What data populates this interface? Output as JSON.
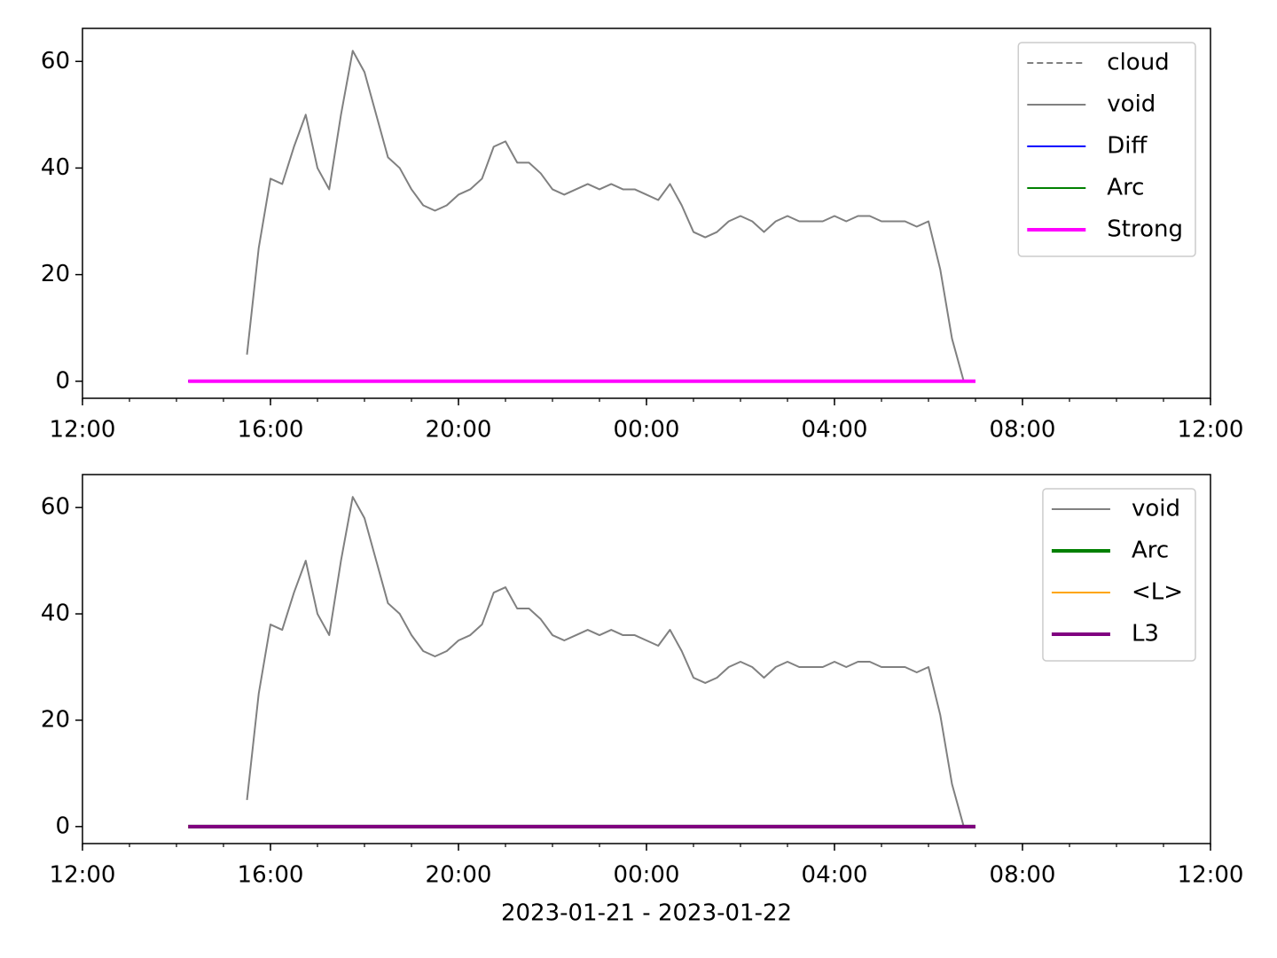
{
  "chart_data": [
    {
      "type": "line",
      "legend": "upper right",
      "xlim": [
        12,
        36
      ],
      "ylim": [
        -3.2,
        66.2
      ],
      "xticks": [
        {
          "value": 12,
          "label": "12:00"
        },
        {
          "value": 16,
          "label": "16:00"
        },
        {
          "value": 20,
          "label": "20:00"
        },
        {
          "value": 24,
          "label": "00:00"
        },
        {
          "value": 28,
          "label": "04:00"
        },
        {
          "value": 32,
          "label": "08:00"
        },
        {
          "value": 36,
          "label": "12:00"
        }
      ],
      "yticks": [
        0,
        20,
        40,
        60
      ],
      "x": [
        14.25,
        14.5,
        14.75,
        15,
        15.25,
        15.5,
        15.75,
        16,
        16.25,
        16.5,
        16.75,
        17,
        17.25,
        17.5,
        17.75,
        18,
        18.25,
        18.5,
        18.75,
        19,
        19.25,
        19.5,
        19.75,
        20,
        20.25,
        20.5,
        20.75,
        21,
        21.25,
        21.5,
        21.75,
        22,
        22.25,
        22.5,
        22.75,
        23,
        23.25,
        23.5,
        23.75,
        24,
        24.25,
        24.5,
        24.75,
        25,
        25.25,
        25.5,
        25.75,
        26,
        26.25,
        26.5,
        26.75,
        27,
        27.25,
        27.5,
        27.75,
        28,
        28.25,
        28.5,
        28.75,
        29,
        29.25,
        29.5,
        29.75,
        30,
        30.25,
        30.5,
        30.75,
        31
      ],
      "series": [
        {
          "name": "cloud",
          "color": "#808080",
          "linestyle": "dashed",
          "linewidth": 2,
          "values": [
            0,
            0,
            0,
            0,
            0,
            0,
            0,
            0,
            0,
            0,
            0,
            0,
            0,
            0,
            0,
            0,
            0,
            0,
            0,
            0,
            0,
            0,
            0,
            0,
            0,
            0,
            0,
            0,
            0,
            0,
            0,
            0,
            0,
            0,
            0,
            0,
            0,
            0,
            0,
            0,
            0,
            0,
            0,
            0,
            0,
            0,
            0,
            0,
            0,
            0,
            0,
            0,
            0,
            0,
            0,
            0,
            0,
            0,
            0,
            0,
            0,
            0,
            0,
            0,
            0,
            0,
            0,
            0
          ]
        },
        {
          "name": "void",
          "color": "#808080",
          "linestyle": "solid",
          "linewidth": 2,
          "values": [
            null,
            null,
            null,
            null,
            null,
            5,
            25,
            38,
            37,
            44,
            50,
            40,
            36,
            50,
            62,
            58,
            50,
            42,
            40,
            36,
            33,
            32,
            33,
            35,
            36,
            38,
            44,
            45,
            41,
            41,
            39,
            36,
            35,
            36,
            37,
            36,
            37,
            36,
            36,
            35,
            34,
            37,
            33,
            28,
            27,
            28,
            30,
            31,
            30,
            28,
            30,
            31,
            30,
            30,
            30,
            31,
            30,
            31,
            31,
            30,
            30,
            30,
            29,
            30,
            21,
            8,
            0,
            null
          ]
        },
        {
          "name": "Diff",
          "color": "#0000ff",
          "linestyle": "solid",
          "linewidth": 2,
          "values": [
            0,
            0,
            0,
            0,
            0,
            0,
            0,
            0,
            0,
            0,
            0,
            0,
            0,
            0,
            0,
            0,
            0,
            0,
            0,
            0,
            0,
            0,
            0,
            0,
            0,
            0,
            0,
            0,
            0,
            0,
            0,
            0,
            0,
            0,
            0,
            0,
            0,
            0,
            0,
            0,
            0,
            0,
            0,
            0,
            0,
            0,
            0,
            0,
            0,
            0,
            0,
            0,
            0,
            0,
            0,
            0,
            0,
            0,
            0,
            0,
            0,
            0,
            0,
            0,
            0,
            0,
            0,
            0
          ]
        },
        {
          "name": "Arc",
          "color": "#008000",
          "linestyle": "solid",
          "linewidth": 2,
          "values": [
            0,
            0,
            0,
            0,
            0,
            0,
            0,
            0,
            0,
            0,
            0,
            0,
            0,
            0,
            0,
            0,
            0,
            0,
            0,
            0,
            0,
            0,
            0,
            0,
            0,
            0,
            0,
            0,
            0,
            0,
            0,
            0,
            0,
            0,
            0,
            0,
            0,
            0,
            0,
            0,
            0,
            0,
            0,
            0,
            0,
            0,
            0,
            0,
            0,
            0,
            0,
            0,
            0,
            0,
            0,
            0,
            0,
            0,
            0,
            0,
            0,
            0,
            0,
            0,
            0,
            0,
            0,
            0
          ]
        },
        {
          "name": "Strong",
          "color": "#ff00ff",
          "linestyle": "solid",
          "linewidth": 4,
          "values": [
            0,
            0,
            0,
            0,
            0,
            0,
            0,
            0,
            0,
            0,
            0,
            0,
            0,
            0,
            0,
            0,
            0,
            0,
            0,
            0,
            0,
            0,
            0,
            0,
            0,
            0,
            0,
            0,
            0,
            0,
            0,
            0,
            0,
            0,
            0,
            0,
            0,
            0,
            0,
            0,
            0,
            0,
            0,
            0,
            0,
            0,
            0,
            0,
            0,
            0,
            0,
            0,
            0,
            0,
            0,
            0,
            0,
            0,
            0,
            0,
            0,
            0,
            0,
            0,
            0,
            0,
            0,
            0
          ]
        }
      ]
    },
    {
      "type": "line",
      "legend": "upper right",
      "xlabel": "2023-01-21 - 2023-01-22",
      "xlim": [
        12,
        36
      ],
      "ylim": [
        -3.2,
        66.2
      ],
      "xticks": [
        {
          "value": 12,
          "label": "12:00"
        },
        {
          "value": 16,
          "label": "16:00"
        },
        {
          "value": 20,
          "label": "20:00"
        },
        {
          "value": 24,
          "label": "00:00"
        },
        {
          "value": 28,
          "label": "04:00"
        },
        {
          "value": 32,
          "label": "08:00"
        },
        {
          "value": 36,
          "label": "12:00"
        }
      ],
      "yticks": [
        0,
        20,
        40,
        60
      ],
      "x": [
        14.25,
        14.5,
        14.75,
        15,
        15.25,
        15.5,
        15.75,
        16,
        16.25,
        16.5,
        16.75,
        17,
        17.25,
        17.5,
        17.75,
        18,
        18.25,
        18.5,
        18.75,
        19,
        19.25,
        19.5,
        19.75,
        20,
        20.25,
        20.5,
        20.75,
        21,
        21.25,
        21.5,
        21.75,
        22,
        22.25,
        22.5,
        22.75,
        23,
        23.25,
        23.5,
        23.75,
        24,
        24.25,
        24.5,
        24.75,
        25,
        25.25,
        25.5,
        25.75,
        26,
        26.25,
        26.5,
        26.75,
        27,
        27.25,
        27.5,
        27.75,
        28,
        28.25,
        28.5,
        28.75,
        29,
        29.25,
        29.5,
        29.75,
        30,
        30.25,
        30.5,
        30.75,
        31
      ],
      "series": [
        {
          "name": "void",
          "color": "#808080",
          "linestyle": "solid",
          "linewidth": 2,
          "values": [
            null,
            null,
            null,
            null,
            null,
            5,
            25,
            38,
            37,
            44,
            50,
            40,
            36,
            50,
            62,
            58,
            50,
            42,
            40,
            36,
            33,
            32,
            33,
            35,
            36,
            38,
            44,
            45,
            41,
            41,
            39,
            36,
            35,
            36,
            37,
            36,
            37,
            36,
            36,
            35,
            34,
            37,
            33,
            28,
            27,
            28,
            30,
            31,
            30,
            28,
            30,
            31,
            30,
            30,
            30,
            31,
            30,
            31,
            31,
            30,
            30,
            30,
            29,
            30,
            21,
            8,
            0,
            null
          ]
        },
        {
          "name": "Arc",
          "color": "#008000",
          "linestyle": "solid",
          "linewidth": 4,
          "values": [
            0,
            0,
            0,
            0,
            0,
            0,
            0,
            0,
            0,
            0,
            0,
            0,
            0,
            0,
            0,
            0,
            0,
            0,
            0,
            0,
            0,
            0,
            0,
            0,
            0,
            0,
            0,
            0,
            0,
            0,
            0,
            0,
            0,
            0,
            0,
            0,
            0,
            0,
            0,
            0,
            0,
            0,
            0,
            0,
            0,
            0,
            0,
            0,
            0,
            0,
            0,
            0,
            0,
            0,
            0,
            0,
            0,
            0,
            0,
            0,
            0,
            0,
            0,
            0,
            0,
            0,
            0,
            0
          ]
        },
        {
          "name": "<L>",
          "color": "#ffa500",
          "linestyle": "solid",
          "linewidth": 2,
          "values": [
            0,
            0,
            0,
            0,
            0,
            0,
            0,
            0,
            0,
            0,
            0,
            0,
            0,
            0,
            0,
            0,
            0,
            0,
            0,
            0,
            0,
            0,
            0,
            0,
            0,
            0,
            0,
            0,
            0,
            0,
            0,
            0,
            0,
            0,
            0,
            0,
            0,
            0,
            0,
            0,
            0,
            0,
            0,
            0,
            0,
            0,
            0,
            0,
            0,
            0,
            0,
            0,
            0,
            0,
            0,
            0,
            0,
            0,
            0,
            0,
            0,
            0,
            0,
            0,
            0,
            0,
            0,
            0
          ]
        },
        {
          "name": "L3",
          "color": "#800080",
          "linestyle": "solid",
          "linewidth": 4,
          "values": [
            0,
            0,
            0,
            0,
            0,
            0,
            0,
            0,
            0,
            0,
            0,
            0,
            0,
            0,
            0,
            0,
            0,
            0,
            0,
            0,
            0,
            0,
            0,
            0,
            0,
            0,
            0,
            0,
            0,
            0,
            0,
            0,
            0,
            0,
            0,
            0,
            0,
            0,
            0,
            0,
            0,
            0,
            0,
            0,
            0,
            0,
            0,
            0,
            0,
            0,
            0,
            0,
            0,
            0,
            0,
            0,
            0,
            0,
            0,
            0,
            0,
            0,
            0,
            0,
            0,
            0,
            0,
            0
          ]
        }
      ]
    }
  ]
}
